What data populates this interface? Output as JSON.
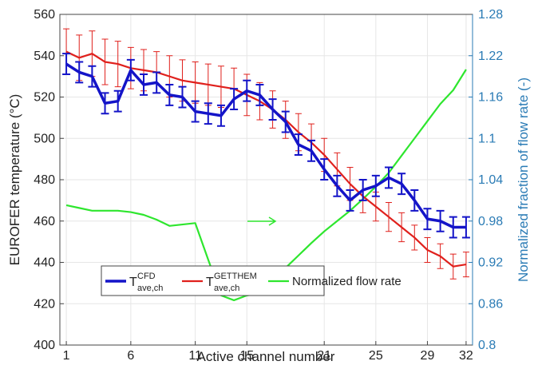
{
  "chart_data": {
    "type": "line",
    "xlabel": "Active channel number",
    "ylabel": "EUROFER temperature (°C)",
    "y2label": "Normalized fraction of flow rate (-)",
    "x": [
      1,
      2,
      3,
      4,
      5,
      6,
      7,
      8,
      9,
      10,
      11,
      12,
      13,
      14,
      15,
      16,
      17,
      18,
      19,
      20,
      21,
      22,
      23,
      24,
      25,
      26,
      27,
      28,
      29,
      30,
      31,
      32
    ],
    "xlim": [
      0.5,
      32.5
    ],
    "xticks": [
      1,
      6,
      11,
      15,
      21,
      25,
      29,
      32
    ],
    "ylim": [
      400,
      560
    ],
    "yticks": [
      400,
      420,
      440,
      460,
      480,
      500,
      520,
      540,
      560
    ],
    "y2lim": [
      0.8,
      1.28
    ],
    "y2ticks": [
      0.8,
      0.86,
      0.92,
      0.98,
      1.04,
      1.1,
      1.16,
      1.22,
      1.28
    ],
    "y2color": "#2a7bb5",
    "grid": true,
    "legend": "lower left",
    "series": [
      {
        "name": "T",
        "sup": "CFD",
        "sub": "ave,ch",
        "color": "#1414c8",
        "values": [
          536,
          532,
          530,
          517,
          518,
          533,
          526,
          527,
          521,
          520,
          513,
          512,
          511,
          519,
          523,
          521,
          514,
          508,
          497,
          494,
          485,
          477,
          470,
          475,
          477,
          481,
          478,
          470,
          461,
          460,
          457,
          457
        ],
        "errors": [
          5,
          5,
          5,
          5,
          5,
          5,
          5,
          5,
          5,
          5,
          5,
          5,
          5,
          5,
          5,
          5,
          5,
          5,
          5,
          5,
          5,
          5,
          5,
          5,
          5,
          5,
          5,
          5,
          5,
          5,
          5,
          5
        ]
      },
      {
        "name": "T",
        "sup": "GETTHEM",
        "sub": "ave,ch",
        "color": "#e0201c",
        "values": [
          542,
          539,
          541,
          537,
          536,
          534,
          533,
          532,
          530,
          528,
          527,
          526,
          525,
          524,
          521,
          518,
          514,
          509,
          503,
          498,
          492,
          485,
          478,
          472,
          467,
          462,
          457,
          452,
          446,
          443,
          438,
          439
        ],
        "errors": [
          11,
          11,
          11,
          11,
          11,
          10,
          10,
          10,
          10,
          10,
          10,
          10,
          10,
          10,
          10,
          9,
          9,
          9,
          9,
          9,
          8,
          8,
          8,
          8,
          7,
          7,
          7,
          6,
          6,
          6,
          6,
          6
        ]
      },
      {
        "name": "Normalized flow rate",
        "color": "#2ee62e",
        "axis": "y2",
        "values": [
          1.003,
          0.999,
          0.995,
          0.995,
          0.995,
          0.993,
          0.989,
          0.982,
          0.973,
          0.975,
          0.977,
          0.924,
          0.872,
          0.865,
          0.872,
          0.875,
          0.895,
          0.912,
          0.93,
          0.948,
          0.965,
          0.98,
          0.995,
          1.012,
          1.03,
          1.05,
          1.075,
          1.1,
          1.125,
          1.15,
          1.17,
          1.2
        ]
      }
    ]
  }
}
